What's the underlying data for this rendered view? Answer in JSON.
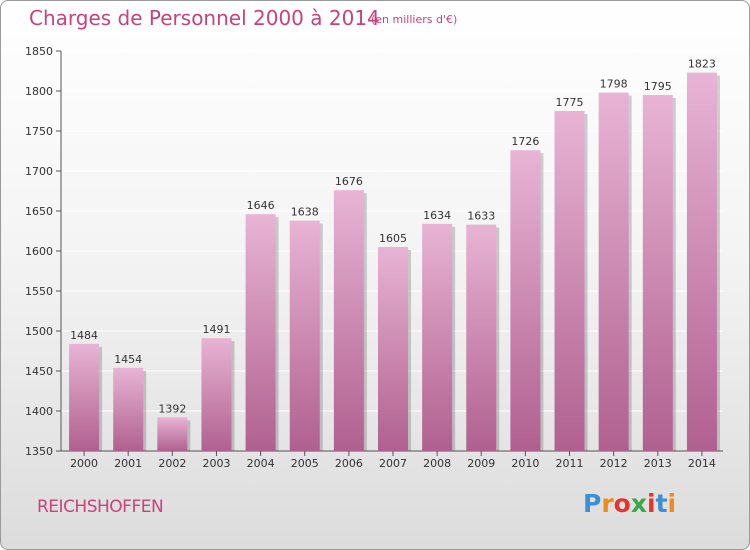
{
  "header": {
    "title": "Charges de Personnel 2000 à 2014",
    "subtitle": "(en milliers d'€)"
  },
  "footer": {
    "city": "REICHSHOFFEN",
    "brand": [
      "P",
      "r",
      "o",
      "x",
      "i",
      "t",
      "i"
    ],
    "brand_colors": [
      "#3b8fd4",
      "#f08a1c",
      "#e4352c",
      "#3aa84a",
      "#e4352c",
      "#3b8fd4",
      "#f08a1c"
    ]
  },
  "colors": {
    "bar": "#d990bd",
    "bar_light": "#e8b4d4",
    "bar_dark": "#b0608f",
    "title": "#c8427c",
    "grid": "#ffffff"
  },
  "chart_data": {
    "type": "bar",
    "title": "Charges de Personnel 2000 à 2014",
    "subtitle": "(en milliers d'€)",
    "categories": [
      "2000",
      "2001",
      "2002",
      "2003",
      "2004",
      "2005",
      "2006",
      "2007",
      "2008",
      "2009",
      "2010",
      "2011",
      "2012",
      "2013",
      "2014"
    ],
    "values": [
      1484,
      1454,
      1392,
      1491,
      1646,
      1638,
      1676,
      1605,
      1634,
      1633,
      1726,
      1775,
      1798,
      1795,
      1823
    ],
    "ylim": [
      1350,
      1850
    ],
    "yticks": [
      1350,
      1400,
      1450,
      1500,
      1550,
      1600,
      1650,
      1700,
      1750,
      1800,
      1850
    ],
    "grid": true,
    "data_labels": true
  }
}
